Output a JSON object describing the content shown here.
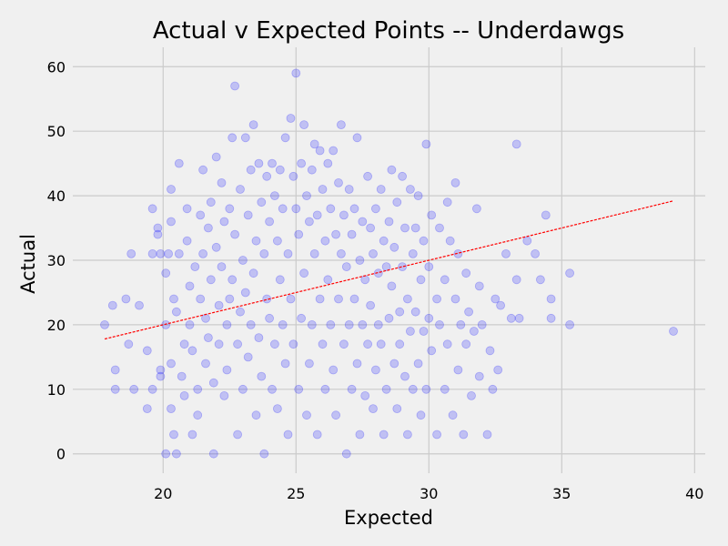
{
  "chart_data": {
    "type": "scatter",
    "title": "Actual v Expected Points -- Underdawgs",
    "xlabel": "Expected",
    "ylabel": "Actual",
    "xlim": [
      16.6,
      40.4
    ],
    "ylim": [
      -3,
      63
    ],
    "xticks": [
      20,
      25,
      30,
      35,
      40
    ],
    "yticks": [
      0,
      10,
      20,
      30,
      40,
      50,
      60
    ],
    "grid": true,
    "point_color": "#0000ff",
    "point_alpha": 0.2,
    "trendline": {
      "style": "dashed",
      "color": "#ff0000",
      "x": [
        17.8,
        39.2
      ],
      "y": [
        17.8,
        39.2
      ]
    },
    "series": [
      {
        "points": [
          [
            17.8,
            20
          ],
          [
            18.1,
            23
          ],
          [
            18.2,
            13
          ],
          [
            18.2,
            10
          ],
          [
            18.6,
            24
          ],
          [
            18.7,
            17
          ],
          [
            18.8,
            31
          ],
          [
            18.9,
            10
          ],
          [
            19.1,
            23
          ],
          [
            19.4,
            7
          ],
          [
            19.4,
            16
          ],
          [
            19.6,
            38
          ],
          [
            19.6,
            31
          ],
          [
            19.6,
            10
          ],
          [
            19.8,
            35
          ],
          [
            19.8,
            34
          ],
          [
            19.9,
            13
          ],
          [
            19.9,
            12
          ],
          [
            19.9,
            31
          ],
          [
            20.1,
            20
          ],
          [
            20.1,
            28
          ],
          [
            20.1,
            0
          ],
          [
            20.2,
            31
          ],
          [
            20.3,
            41
          ],
          [
            20.3,
            36
          ],
          [
            20.3,
            14
          ],
          [
            20.3,
            7
          ],
          [
            20.4,
            3
          ],
          [
            20.4,
            24
          ],
          [
            20.5,
            0
          ],
          [
            20.5,
            22
          ],
          [
            20.6,
            45
          ],
          [
            20.6,
            31
          ],
          [
            20.7,
            12
          ],
          [
            20.8,
            17
          ],
          [
            20.8,
            9
          ],
          [
            20.9,
            38
          ],
          [
            20.9,
            33
          ],
          [
            21.0,
            26
          ],
          [
            21.0,
            20
          ],
          [
            21.1,
            16
          ],
          [
            21.1,
            3
          ],
          [
            21.2,
            29
          ],
          [
            21.3,
            10
          ],
          [
            21.3,
            6
          ],
          [
            21.4,
            37
          ],
          [
            21.4,
            24
          ],
          [
            21.5,
            44
          ],
          [
            21.5,
            31
          ],
          [
            21.6,
            21
          ],
          [
            21.6,
            14
          ],
          [
            21.7,
            35
          ],
          [
            21.7,
            18
          ],
          [
            21.8,
            39
          ],
          [
            21.8,
            27
          ],
          [
            21.9,
            11
          ],
          [
            21.9,
            0
          ],
          [
            22.0,
            46
          ],
          [
            22.0,
            32
          ],
          [
            22.1,
            23
          ],
          [
            22.1,
            17
          ],
          [
            22.2,
            42
          ],
          [
            22.2,
            29
          ],
          [
            22.3,
            36
          ],
          [
            22.3,
            9
          ],
          [
            22.4,
            20
          ],
          [
            22.4,
            13
          ],
          [
            22.5,
            38
          ],
          [
            22.5,
            24
          ],
          [
            22.6,
            49
          ],
          [
            22.6,
            27
          ],
          [
            22.7,
            57
          ],
          [
            22.7,
            34
          ],
          [
            22.8,
            17
          ],
          [
            22.8,
            3
          ],
          [
            22.9,
            41
          ],
          [
            22.9,
            22
          ],
          [
            23.0,
            30
          ],
          [
            23.0,
            10
          ],
          [
            23.1,
            49
          ],
          [
            23.1,
            25
          ],
          [
            23.2,
            37
          ],
          [
            23.2,
            15
          ],
          [
            23.3,
            44
          ],
          [
            23.3,
            20
          ],
          [
            23.4,
            51
          ],
          [
            23.4,
            28
          ],
          [
            23.5,
            33
          ],
          [
            23.5,
            6
          ],
          [
            23.6,
            45
          ],
          [
            23.6,
            18
          ],
          [
            23.7,
            39
          ],
          [
            23.7,
            12
          ],
          [
            23.8,
            31
          ],
          [
            23.8,
            0
          ],
          [
            23.9,
            43
          ],
          [
            23.9,
            24
          ],
          [
            24.0,
            36
          ],
          [
            24.0,
            21
          ],
          [
            24.1,
            45
          ],
          [
            24.1,
            10
          ],
          [
            24.2,
            40
          ],
          [
            24.2,
            17
          ],
          [
            24.3,
            33
          ],
          [
            24.3,
            7
          ],
          [
            24.4,
            44
          ],
          [
            24.4,
            27
          ],
          [
            24.5,
            38
          ],
          [
            24.5,
            20
          ],
          [
            24.6,
            49
          ],
          [
            24.6,
            14
          ],
          [
            24.7,
            31
          ],
          [
            24.7,
            3
          ],
          [
            24.8,
            52
          ],
          [
            24.8,
            24
          ],
          [
            24.9,
            43
          ],
          [
            24.9,
            17
          ],
          [
            25.0,
            59
          ],
          [
            25.0,
            38
          ],
          [
            25.1,
            34
          ],
          [
            25.1,
            10
          ],
          [
            25.2,
            45
          ],
          [
            25.2,
            21
          ],
          [
            25.3,
            51
          ],
          [
            25.3,
            28
          ],
          [
            25.4,
            40
          ],
          [
            25.4,
            6
          ],
          [
            25.5,
            36
          ],
          [
            25.5,
            14
          ],
          [
            25.6,
            44
          ],
          [
            25.6,
            20
          ],
          [
            25.7,
            48
          ],
          [
            25.7,
            31
          ],
          [
            25.8,
            37
          ],
          [
            25.8,
            3
          ],
          [
            25.9,
            47
          ],
          [
            25.9,
            24
          ],
          [
            26.0,
            41
          ],
          [
            26.0,
            17
          ],
          [
            26.1,
            33
          ],
          [
            26.1,
            10
          ],
          [
            26.2,
            45
          ],
          [
            26.2,
            27
          ],
          [
            26.3,
            38
          ],
          [
            26.3,
            20
          ],
          [
            26.4,
            47
          ],
          [
            26.4,
            13
          ],
          [
            26.5,
            34
          ],
          [
            26.5,
            6
          ],
          [
            26.6,
            42
          ],
          [
            26.6,
            24
          ],
          [
            26.7,
            51
          ],
          [
            26.7,
            31
          ],
          [
            26.8,
            37
          ],
          [
            26.8,
            17
          ],
          [
            26.9,
            29
          ],
          [
            26.9,
            0
          ],
          [
            27.0,
            41
          ],
          [
            27.0,
            20
          ],
          [
            27.1,
            34
          ],
          [
            27.1,
            10
          ],
          [
            27.2,
            38
          ],
          [
            27.2,
            24
          ],
          [
            27.3,
            49
          ],
          [
            27.3,
            14
          ],
          [
            27.4,
            30
          ],
          [
            27.4,
            3
          ],
          [
            27.5,
            36
          ],
          [
            27.5,
            20
          ],
          [
            27.6,
            27
          ],
          [
            27.6,
            9
          ],
          [
            27.7,
            43
          ],
          [
            27.7,
            17
          ],
          [
            27.8,
            35
          ],
          [
            27.8,
            23
          ],
          [
            27.9,
            31
          ],
          [
            27.9,
            7
          ],
          [
            28.0,
            38
          ],
          [
            28.0,
            13
          ],
          [
            28.1,
            28
          ],
          [
            28.1,
            20
          ],
          [
            28.2,
            41
          ],
          [
            28.2,
            17
          ],
          [
            28.3,
            33
          ],
          [
            28.3,
            3
          ],
          [
            28.4,
            29
          ],
          [
            28.4,
            10
          ],
          [
            28.5,
            36
          ],
          [
            28.5,
            21
          ],
          [
            28.6,
            44
          ],
          [
            28.6,
            26
          ],
          [
            28.7,
            32
          ],
          [
            28.7,
            14
          ],
          [
            28.8,
            39
          ],
          [
            28.8,
            7
          ],
          [
            28.9,
            22
          ],
          [
            28.9,
            17
          ],
          [
            29.0,
            43
          ],
          [
            29.0,
            29
          ],
          [
            29.1,
            35
          ],
          [
            29.1,
            12
          ],
          [
            29.2,
            24
          ],
          [
            29.2,
            3
          ],
          [
            29.3,
            41
          ],
          [
            29.3,
            19
          ],
          [
            29.4,
            31
          ],
          [
            29.4,
            10
          ],
          [
            29.5,
            35
          ],
          [
            29.5,
            22
          ],
          [
            29.6,
            40
          ],
          [
            29.6,
            14
          ],
          [
            29.7,
            27
          ],
          [
            29.7,
            6
          ],
          [
            29.8,
            33
          ],
          [
            29.8,
            19
          ],
          [
            29.9,
            48
          ],
          [
            29.9,
            10
          ],
          [
            30.0,
            29
          ],
          [
            30.0,
            21
          ],
          [
            30.1,
            37
          ],
          [
            30.1,
            16
          ],
          [
            30.3,
            24
          ],
          [
            30.3,
            3
          ],
          [
            30.4,
            35
          ],
          [
            30.4,
            20
          ],
          [
            30.6,
            27
          ],
          [
            30.6,
            10
          ],
          [
            30.7,
            39
          ],
          [
            30.7,
            17
          ],
          [
            30.8,
            33
          ],
          [
            30.9,
            6
          ],
          [
            31.0,
            42
          ],
          [
            31.0,
            24
          ],
          [
            31.1,
            31
          ],
          [
            31.1,
            13
          ],
          [
            31.2,
            20
          ],
          [
            31.3,
            3
          ],
          [
            31.4,
            28
          ],
          [
            31.4,
            17
          ],
          [
            31.5,
            22
          ],
          [
            31.6,
            9
          ],
          [
            31.7,
            19
          ],
          [
            31.8,
            38
          ],
          [
            31.9,
            26
          ],
          [
            31.9,
            12
          ],
          [
            32.0,
            20
          ],
          [
            32.2,
            3
          ],
          [
            32.3,
            16
          ],
          [
            32.4,
            10
          ],
          [
            32.5,
            24
          ],
          [
            32.6,
            13
          ],
          [
            32.7,
            23
          ],
          [
            32.9,
            31
          ],
          [
            33.1,
            21
          ],
          [
            33.3,
            48
          ],
          [
            33.3,
            27
          ],
          [
            33.4,
            21
          ],
          [
            33.7,
            33
          ],
          [
            34.0,
            31
          ],
          [
            34.2,
            27
          ],
          [
            34.4,
            37
          ],
          [
            34.6,
            24
          ],
          [
            34.6,
            21
          ],
          [
            35.3,
            28
          ],
          [
            35.3,
            20
          ],
          [
            39.2,
            19
          ]
        ]
      }
    ]
  }
}
